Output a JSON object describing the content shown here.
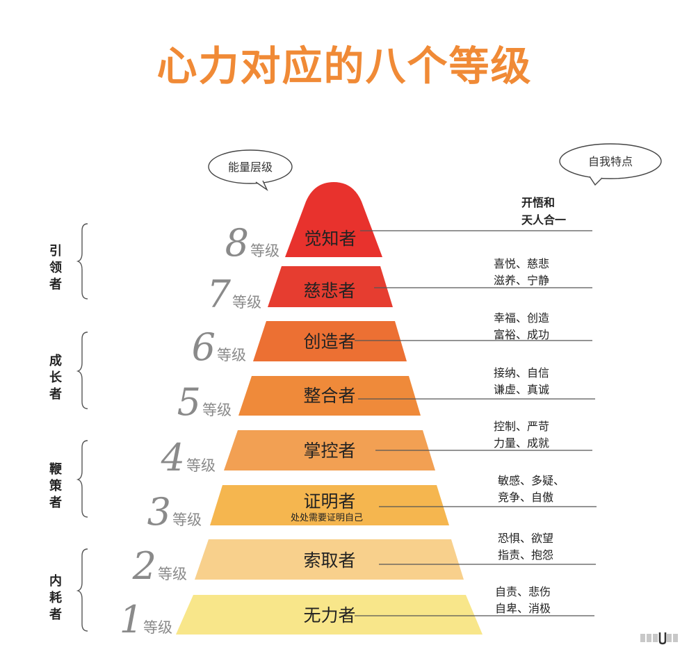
{
  "title": "心力对应的八个等级",
  "bubbles": {
    "left": "能量层级",
    "right": "自我特点"
  },
  "tiers": [
    {
      "level": "8",
      "unit": "等级",
      "name": "觉知者",
      "sub": "",
      "traits": [
        "开悟和",
        "天人合一"
      ],
      "color": "#e8322d"
    },
    {
      "level": "7",
      "unit": "等级",
      "name": "慈悲者",
      "sub": "",
      "traits": [
        "喜悦、慈悲",
        "滋养、宁静"
      ],
      "color": "#e63d30"
    },
    {
      "level": "6",
      "unit": "等级",
      "name": "创造者",
      "sub": "",
      "traits": [
        "幸福、创造",
        "富裕、成功"
      ],
      "color": "#ec7033"
    },
    {
      "level": "5",
      "unit": "等级",
      "name": "整合者",
      "sub": "",
      "traits": [
        "接纳、自信",
        "谦虚、真诚"
      ],
      "color": "#ef8a3a"
    },
    {
      "level": "4",
      "unit": "等级",
      "name": "掌控者",
      "sub": "",
      "traits": [
        "控制、严苛",
        "力量、成就"
      ],
      "color": "#f2a053"
    },
    {
      "level": "3",
      "unit": "等级",
      "name": "证明者",
      "sub": "处处需要证明自己",
      "traits": [
        "敏感、多疑、",
        "竞争、自傲"
      ],
      "color": "#f5b64f"
    },
    {
      "level": "2",
      "unit": "等级",
      "name": "索取者",
      "sub": "",
      "traits": [
        "恐惧、欲望",
        "指责、抱怨"
      ],
      "color": "#f8d08c"
    },
    {
      "level": "1",
      "unit": "等级",
      "name": "无力者",
      "sub": "",
      "traits": [
        "自责、悲伤",
        "自卑、消极"
      ],
      "color": "#f8e68a"
    }
  ],
  "groups": [
    {
      "chars": [
        "引",
        "领",
        "者"
      ]
    },
    {
      "chars": [
        "成",
        "长",
        "者"
      ]
    },
    {
      "chars": [
        "鞭",
        "策",
        "者"
      ]
    },
    {
      "chars": [
        "内",
        "耗",
        "者"
      ]
    }
  ]
}
